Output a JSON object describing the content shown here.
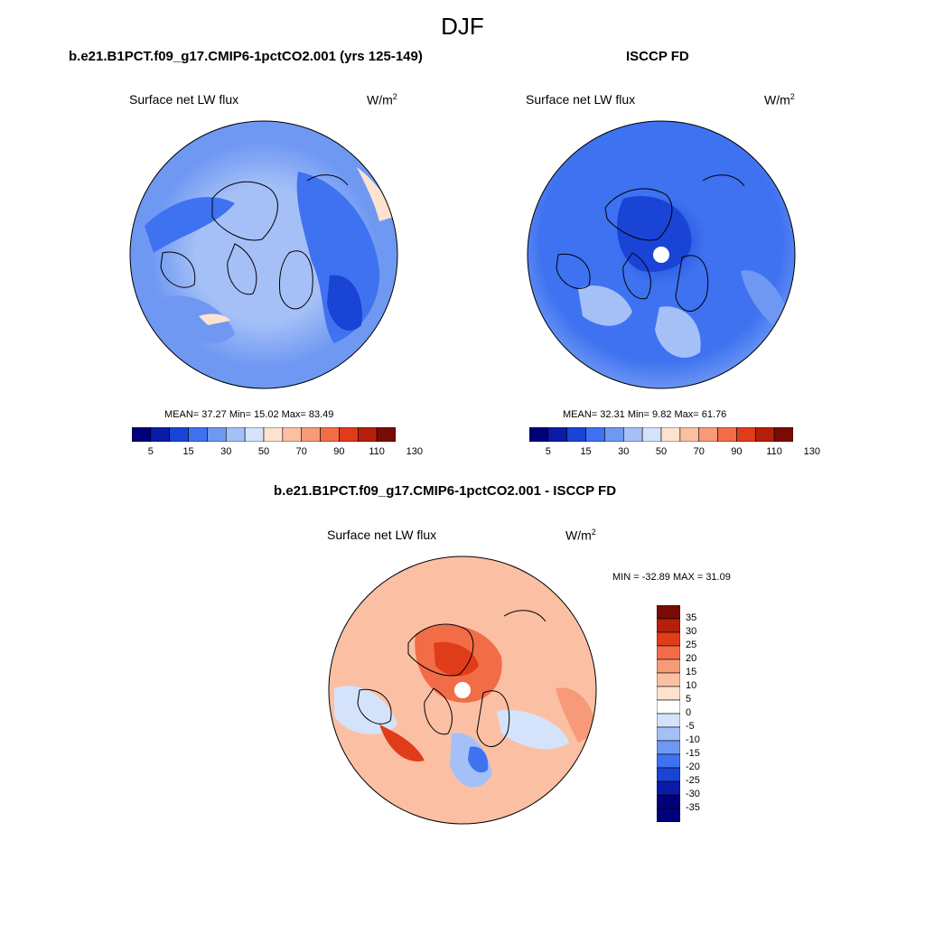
{
  "title": "DJF",
  "colors": {
    "abs_scale": [
      "#00007a",
      "#0a1ca6",
      "#1a44d6",
      "#3f72f0",
      "#6f98f3",
      "#a5c0f7",
      "#d4e3fb",
      "#fde2d0",
      "#fbc0a4",
      "#f79a78",
      "#f26c47",
      "#e03c1a",
      "#b51f0c",
      "#7a0a04"
    ],
    "diff_scale": [
      "#00007a",
      "#0a1ca6",
      "#1a44d6",
      "#3f72f0",
      "#6f98f3",
      "#a5c0f7",
      "#d4e3fb",
      "#ffffff",
      "#fde2d0",
      "#fbc0a4",
      "#f79a78",
      "#f26c47",
      "#e03c1a",
      "#b51f0c",
      "#7a0a04"
    ],
    "model_fill": "#6f98f3",
    "obs_fill": "#3f72f0",
    "diff_fill": "#fbc0a4"
  },
  "panels": {
    "model": {
      "title": "b.e21.B1PCT.f09_g17.CMIP6-1pctCO2.001 (yrs 125-149)",
      "variable": "Surface net LW flux",
      "units_base": "W/m",
      "units_exp": "2",
      "stats": "MEAN=  37.27  Min=  15.02  Max=  83.49"
    },
    "obs": {
      "title": "ISCCP FD",
      "variable": "Surface net LW flux",
      "units_base": "W/m",
      "units_exp": "2",
      "stats": "MEAN=  32.31  Min=   9.82  Max=  61.76"
    },
    "diff": {
      "title": "b.e21.B1PCT.f09_g17.CMIP6-1pctCO2.001 - ISCCP FD",
      "variable": "Surface net LW flux",
      "units_base": "W/m",
      "units_exp": "2",
      "stats": "MIN = -32.89 MAX =  31.09"
    }
  },
  "chart_data": [
    {
      "type": "heatmap",
      "projection": "north polar stereographic",
      "title": "b.e21.B1PCT.f09_g17.CMIP6-1pctCO2.001 (yrs 125-149)",
      "variable": "Surface net LW flux",
      "units": "W/m2",
      "mean": 37.27,
      "min": 15.02,
      "max": 83.49,
      "colorbar_levels": [
        5,
        10,
        15,
        20,
        30,
        40,
        50,
        60,
        70,
        80,
        90,
        100,
        110,
        120,
        130
      ],
      "colorbar_labels": [
        "5",
        "15",
        "30",
        "50",
        "70",
        "90",
        "110",
        "130"
      ]
    },
    {
      "type": "heatmap",
      "projection": "north polar stereographic",
      "title": "ISCCP FD",
      "variable": "Surface net LW flux",
      "units": "W/m2",
      "mean": 32.31,
      "min": 9.82,
      "max": 61.76,
      "colorbar_levels": [
        5,
        10,
        15,
        20,
        30,
        40,
        50,
        60,
        70,
        80,
        90,
        100,
        110,
        120,
        130
      ],
      "colorbar_labels": [
        "5",
        "15",
        "30",
        "50",
        "70",
        "90",
        "110",
        "130"
      ]
    },
    {
      "type": "heatmap",
      "projection": "north polar stereographic",
      "title": "b.e21.B1PCT.f09_g17.CMIP6-1pctCO2.001 - ISCCP FD",
      "variable": "Surface net LW flux",
      "units": "W/m2",
      "min": -32.89,
      "max": 31.09,
      "colorbar_levels": [
        35,
        30,
        25,
        20,
        15,
        10,
        5,
        0,
        -5,
        -10,
        -15,
        -20,
        -25,
        -30,
        -35
      ],
      "colorbar_labels": [
        "35",
        "30",
        "25",
        "20",
        "15",
        "10",
        "5",
        "0",
        "-5",
        "-10",
        "-15",
        "-20",
        "-25",
        "-30",
        "-35"
      ]
    }
  ]
}
